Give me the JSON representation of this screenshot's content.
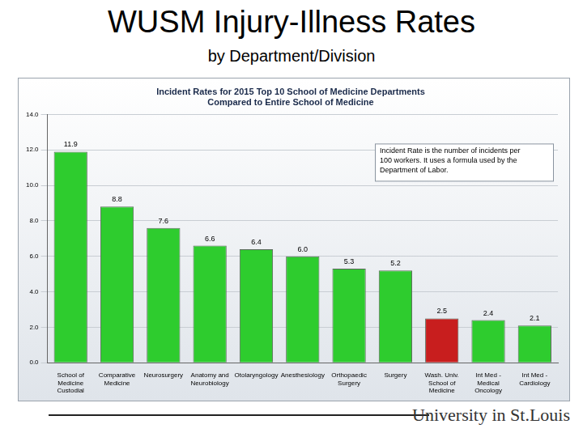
{
  "header": {
    "title": "WUSM Injury-Illness Rates",
    "subtitle": "by Department/Division"
  },
  "footer": "University in St.Louis",
  "chart_data": {
    "type": "bar",
    "title": "Incident Rates for 2015 Top 10 School of Medicine Departments Compared to Entire School of Medicine",
    "annotation": "Incident Rate is the number of incidents per 100 workers. It uses a formula used by the Department of Labor.",
    "categories": [
      "School of Medicine Custodial",
      "Comparative Medicine",
      "Neurosurgery",
      "Anatomy and Neurobiology",
      "Otolaryngology",
      "Anesthesiology",
      "Orthopaedic Surgery",
      "Surgery",
      "Wash. Univ. School of Medicine",
      "Int Med - Medical Oncology",
      "Int Med - Cardiology"
    ],
    "values": [
      11.9,
      8.8,
      7.6,
      6.6,
      6.4,
      6.0,
      5.3,
      5.2,
      2.5,
      2.4,
      2.1
    ],
    "value_labels": [
      "11.9",
      "8.8",
      "7.6",
      "6.6",
      "6.4",
      "6.0",
      "5.3",
      "5.2",
      "2.5",
      "2.4",
      "2.1"
    ],
    "colors": [
      "#2ecc2e",
      "#2ecc2e",
      "#2ecc2e",
      "#2ecc2e",
      "#2ecc2e",
      "#2ecc2e",
      "#2ecc2e",
      "#2ecc2e",
      "#c81e1e",
      "#2ecc2e",
      "#2ecc2e"
    ],
    "ylim": [
      0,
      14
    ],
    "yticks": [
      {
        "value": 0,
        "label": "0.0"
      },
      {
        "value": 2,
        "label": "2.0"
      },
      {
        "value": 4,
        "label": "4.0"
      },
      {
        "value": 6,
        "label": "6.0"
      },
      {
        "value": 8,
        "label": "8.0"
      },
      {
        "value": 10,
        "label": "10.0"
      },
      {
        "value": 12,
        "label": "12.0"
      },
      {
        "value": 14,
        "label": "14.0"
      }
    ],
    "grid": true,
    "data_labels": true
  }
}
